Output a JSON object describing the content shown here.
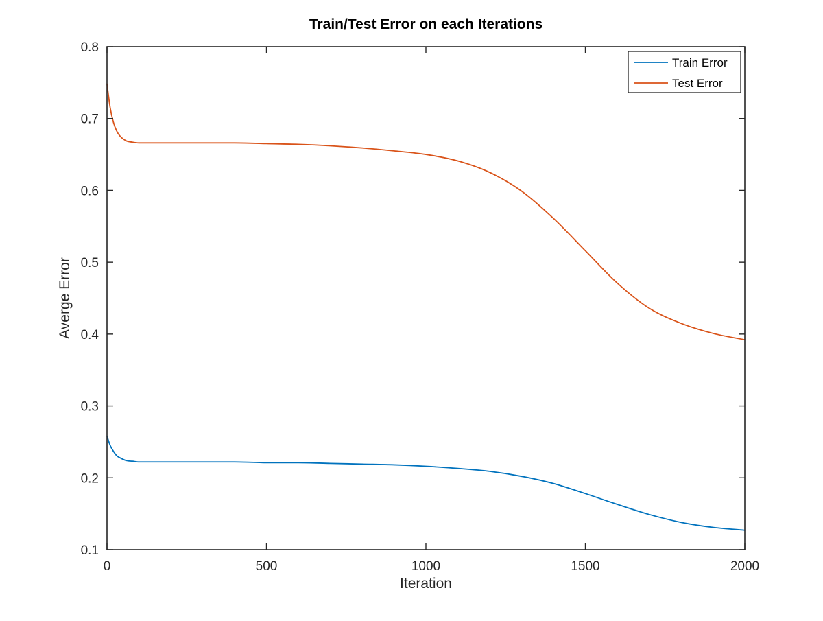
{
  "chart_data": {
    "type": "line",
    "title": "Train/Test Error on each Iterations",
    "xlabel": "Iteration",
    "ylabel": "Averge Error",
    "xlim": [
      0,
      2000
    ],
    "ylim": [
      0.1,
      0.8
    ],
    "xticks": [
      0,
      500,
      1000,
      1500,
      2000
    ],
    "xtick_labels": [
      "0",
      "500",
      "1000",
      "1500",
      "2000"
    ],
    "yticks": [
      0.1,
      0.2,
      0.3,
      0.4,
      0.5,
      0.6,
      0.7,
      0.8
    ],
    "ytick_labels": [
      "0.1",
      "0.2",
      "0.3",
      "0.4",
      "0.5",
      "0.6",
      "0.7",
      "0.8"
    ],
    "grid": false,
    "legend_position": "top-right",
    "series": [
      {
        "name": "Train Error",
        "color": "#0072bd",
        "x": [
          0,
          10,
          20,
          30,
          40,
          60,
          80,
          100,
          150,
          200,
          300,
          400,
          500,
          600,
          700,
          800,
          900,
          1000,
          1100,
          1200,
          1300,
          1400,
          1500,
          1600,
          1700,
          1800,
          1900,
          2000
        ],
        "y": [
          0.258,
          0.245,
          0.237,
          0.231,
          0.228,
          0.224,
          0.223,
          0.222,
          0.222,
          0.222,
          0.222,
          0.222,
          0.221,
          0.221,
          0.22,
          0.219,
          0.218,
          0.216,
          0.213,
          0.209,
          0.202,
          0.192,
          0.178,
          0.163,
          0.149,
          0.138,
          0.131,
          0.127
        ]
      },
      {
        "name": "Test Error",
        "color": "#d95319",
        "x": [
          0,
          10,
          20,
          30,
          40,
          60,
          80,
          100,
          150,
          200,
          300,
          400,
          500,
          600,
          700,
          800,
          900,
          1000,
          1100,
          1200,
          1300,
          1400,
          1500,
          1600,
          1700,
          1800,
          1900,
          2000
        ],
        "y": [
          0.748,
          0.715,
          0.695,
          0.683,
          0.676,
          0.669,
          0.667,
          0.666,
          0.666,
          0.666,
          0.666,
          0.666,
          0.665,
          0.664,
          0.662,
          0.659,
          0.655,
          0.65,
          0.641,
          0.625,
          0.599,
          0.561,
          0.516,
          0.471,
          0.436,
          0.415,
          0.401,
          0.392
        ]
      }
    ]
  }
}
